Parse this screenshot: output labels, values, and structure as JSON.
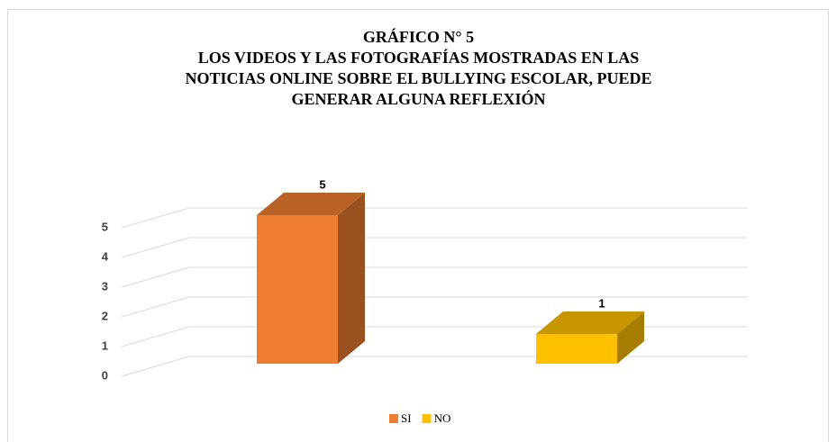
{
  "chart_data": {
    "type": "bar3d",
    "title": "GRÁFICO N° 5",
    "subtitle": "LOS VIDEOS Y LAS FOTOGRAFÍAS MOSTRADAS EN LAS NOTICIAS ONLINE SOBRE EL BULLYING ESCOLAR, PUEDE GENERAR ALGUNA REFLEXIÓN",
    "categories": [
      "SI",
      "NO"
    ],
    "values": [
      5,
      1
    ],
    "colors": [
      "#ed7d31",
      "#ffc000"
    ],
    "ylim": [
      0,
      6
    ],
    "yticks": [
      0,
      1,
      2,
      3,
      4,
      5
    ],
    "grid": true,
    "legend": "bottom"
  }
}
